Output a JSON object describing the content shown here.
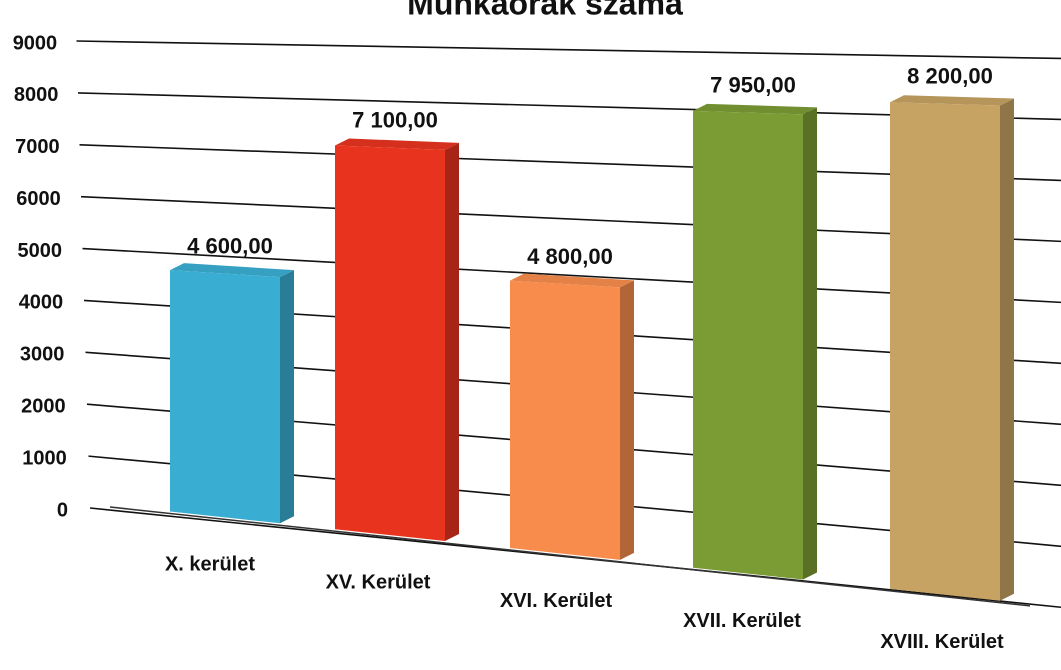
{
  "chart_data": {
    "type": "bar3d",
    "title": "Munkaórák száma",
    "categories": [
      "X. kerület",
      "XV. Kerület",
      "XVI. Kerület",
      "XVII. Kerület",
      "XVIII. Kerület"
    ],
    "values": [
      4600,
      7100,
      4800,
      7950,
      8200
    ],
    "value_labels": [
      "4 600,00",
      "7 100,00",
      "4 800,00",
      "7 950,00",
      "8 200,00"
    ],
    "colors": [
      "#3aaed2",
      "#e8341f",
      "#f78c4c",
      "#7b9b34",
      "#c6a263"
    ],
    "ylim": [
      0,
      9000
    ],
    "yticks": [
      0,
      1000,
      2000,
      3000,
      4000,
      5000,
      6000,
      7000,
      8000,
      9000
    ],
    "grid": true
  }
}
